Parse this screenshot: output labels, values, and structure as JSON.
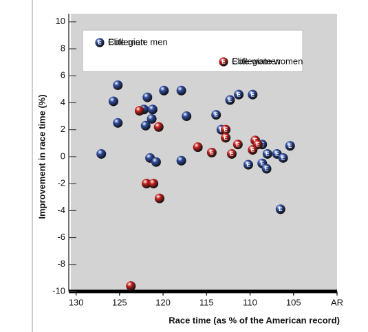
{
  "chart_data": {
    "type": "scatter",
    "x_label": "Race time (as % of the American record)",
    "y_label": "Improvement in race time (%)",
    "xlim": [
      130.6,
      100
    ],
    "ylim": [
      -10,
      10.6
    ],
    "xticks": [
      130,
      125,
      120,
      115,
      110,
      105,
      {
        "value": 100,
        "label": "AR"
      }
    ],
    "yticks": [
      -10,
      -8,
      -6,
      -4,
      -2,
      0,
      2,
      4,
      6,
      8,
      10
    ],
    "series": [
      {
        "name": "Collegiate men",
        "color": "#2f4ea3",
        "x": [
          127.1,
          125.2,
          125.7,
          125.2,
          121.8,
          122.2,
          121.2,
          121.3,
          122.0,
          119.9,
          117.9,
          117.3,
          121.5,
          120.8,
          117.9
        ],
        "y": [
          0.2,
          5.3,
          4.1,
          2.5,
          4.4,
          3.5,
          3.5,
          2.8,
          2.3,
          4.9,
          4.9,
          3.0,
          -0.1,
          -0.4,
          -0.3
        ]
      },
      {
        "name": "Collegiate women",
        "color": "#c8221f",
        "x": [
          122.7,
          120.5,
          121.9,
          121.1,
          120.4,
          123.7,
          116.0
        ],
        "y": [
          3.4,
          2.2,
          -2.0,
          -2.0,
          -3.1,
          -9.6,
          0.7
        ]
      },
      {
        "name": "Elite men",
        "color": "#2f4ea3",
        "marker_label": "E",
        "x": [
          113.9,
          112.3,
          111.3,
          109.7,
          113.3,
          108.6,
          108.0,
          108.6,
          108.1,
          106.9,
          106.2,
          105.4,
          110.2,
          106.5
        ],
        "y": [
          3.1,
          4.2,
          4.6,
          4.6,
          2.0,
          0.9,
          0.2,
          -0.5,
          -0.9,
          0.2,
          -0.1,
          0.8,
          -0.6,
          -3.9
        ]
      },
      {
        "name": "Elite women",
        "color": "#c8221f",
        "marker_label": "E",
        "x": [
          112.8,
          112.8,
          111.4,
          114.4,
          112.1,
          109.4,
          109.1,
          109.7
        ],
        "y": [
          2.0,
          1.4,
          0.9,
          0.3,
          0.2,
          1.2,
          0.9,
          0.5
        ]
      }
    ]
  }
}
